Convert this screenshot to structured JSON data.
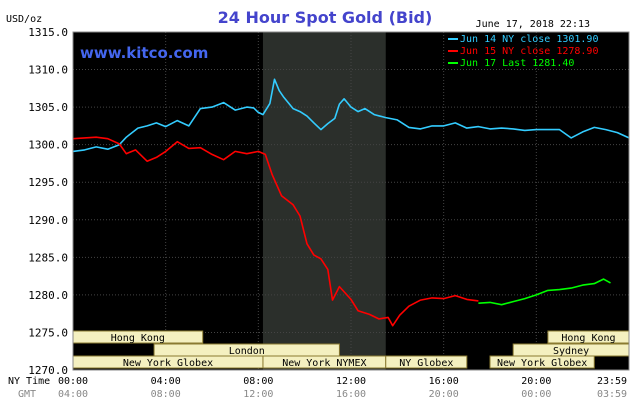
{
  "chart_data": {
    "type": "line",
    "title": "24 Hour Spot Gold (Bid)",
    "watermark": "www.kitco.com",
    "ylabel": "USD/oz",
    "timestamp": "June 17, 2018 22:13",
    "ylim": [
      1270.0,
      1315.0
    ],
    "y_ticks": [
      "1315.0",
      "1310.0",
      "1305.0",
      "1300.0",
      "1295.0",
      "1290.0",
      "1285.0",
      "1280.0",
      "1275.0",
      "1270.0"
    ],
    "x_range_hours": [
      0,
      24
    ],
    "ny_time_label": "NY Time",
    "gmt_label": "GMT",
    "ny_time_ticks": [
      "00:00",
      "04:00",
      "08:00",
      "12:00",
      "16:00",
      "20:00",
      "23:59"
    ],
    "gmt_ticks": [
      "04:00",
      "08:00",
      "12:00",
      "16:00",
      "20:00",
      "00:00",
      "03:59"
    ],
    "shaded_hours": [
      8.2,
      13.5
    ],
    "legend_placement": "top-right",
    "series": [
      {
        "name": "Jun 14 NY close 1301.90",
        "color": "#33ccff",
        "points": [
          [
            0,
            1299.1
          ],
          [
            0.5,
            1299.3
          ],
          [
            1,
            1299.7
          ],
          [
            1.5,
            1299.4
          ],
          [
            2,
            1300.0
          ],
          [
            2.3,
            1301.0
          ],
          [
            2.8,
            1302.2
          ],
          [
            3.2,
            1302.5
          ],
          [
            3.6,
            1302.9
          ],
          [
            4,
            1302.4
          ],
          [
            4.5,
            1303.2
          ],
          [
            5,
            1302.5
          ],
          [
            5.5,
            1304.8
          ],
          [
            6,
            1305.0
          ],
          [
            6.5,
            1305.6
          ],
          [
            7,
            1304.6
          ],
          [
            7.5,
            1305.0
          ],
          [
            7.8,
            1304.9
          ],
          [
            8.0,
            1304.3
          ],
          [
            8.2,
            1304.0
          ],
          [
            8.5,
            1305.5
          ],
          [
            8.7,
            1308.7
          ],
          [
            8.9,
            1307.2
          ],
          [
            9.1,
            1306.3
          ],
          [
            9.5,
            1304.8
          ],
          [
            9.8,
            1304.4
          ],
          [
            10.1,
            1303.8
          ],
          [
            10.4,
            1302.9
          ],
          [
            10.7,
            1302.0
          ],
          [
            11.0,
            1302.8
          ],
          [
            11.3,
            1303.5
          ],
          [
            11.5,
            1305.4
          ],
          [
            11.7,
            1306.1
          ],
          [
            12.0,
            1305.0
          ],
          [
            12.3,
            1304.4
          ],
          [
            12.6,
            1304.8
          ],
          [
            13.0,
            1304.0
          ],
          [
            13.5,
            1303.6
          ],
          [
            14,
            1303.3
          ],
          [
            14.5,
            1302.3
          ],
          [
            15,
            1302.1
          ],
          [
            15.5,
            1302.5
          ],
          [
            16,
            1302.5
          ],
          [
            16.5,
            1302.9
          ],
          [
            17,
            1302.2
          ],
          [
            17.5,
            1302.4
          ],
          [
            18,
            1302.1
          ],
          [
            18.5,
            1302.2
          ],
          [
            19,
            1302.1
          ],
          [
            19.5,
            1301.9
          ],
          [
            20,
            1302.0
          ],
          [
            20.5,
            1302.0
          ],
          [
            21,
            1302.0
          ],
          [
            21.5,
            1300.9
          ],
          [
            22,
            1301.7
          ],
          [
            22.5,
            1302.3
          ],
          [
            23,
            1302.0
          ],
          [
            23.5,
            1301.6
          ],
          [
            24,
            1300.9
          ]
        ]
      },
      {
        "name": "Jun 15 NY close 1278.90",
        "color": "#ff0000",
        "points": [
          [
            0,
            1300.8
          ],
          [
            0.5,
            1300.9
          ],
          [
            1,
            1301.0
          ],
          [
            1.5,
            1300.8
          ],
          [
            2,
            1300.1
          ],
          [
            2.3,
            1298.8
          ],
          [
            2.7,
            1299.3
          ],
          [
            3.2,
            1297.8
          ],
          [
            3.6,
            1298.3
          ],
          [
            4,
            1299.1
          ],
          [
            4.5,
            1300.4
          ],
          [
            5,
            1299.5
          ],
          [
            5.5,
            1299.6
          ],
          [
            6,
            1298.7
          ],
          [
            6.5,
            1298.0
          ],
          [
            7,
            1299.1
          ],
          [
            7.5,
            1298.8
          ],
          [
            8.0,
            1299.1
          ],
          [
            8.3,
            1298.7
          ],
          [
            8.6,
            1296.0
          ],
          [
            9.0,
            1293.2
          ],
          [
            9.5,
            1292.0
          ],
          [
            9.8,
            1290.5
          ],
          [
            10.1,
            1286.8
          ],
          [
            10.4,
            1285.3
          ],
          [
            10.7,
            1284.8
          ],
          [
            11.0,
            1283.4
          ],
          [
            11.2,
            1279.3
          ],
          [
            11.5,
            1281.1
          ],
          [
            12.0,
            1279.4
          ],
          [
            12.3,
            1277.9
          ],
          [
            12.8,
            1277.4
          ],
          [
            13.2,
            1276.8
          ],
          [
            13.6,
            1277.0
          ],
          [
            13.8,
            1275.9
          ],
          [
            14.1,
            1277.3
          ],
          [
            14.5,
            1278.5
          ],
          [
            15,
            1279.3
          ],
          [
            15.5,
            1279.6
          ],
          [
            16,
            1279.5
          ],
          [
            16.5,
            1279.9
          ],
          [
            17,
            1279.4
          ],
          [
            17.5,
            1279.2
          ]
        ]
      },
      {
        "name": "Jun 17 Last 1281.40",
        "color": "#00ff00",
        "points": [
          [
            17.5,
            1278.9
          ],
          [
            18,
            1279.0
          ],
          [
            18.5,
            1278.7
          ],
          [
            19,
            1279.1
          ],
          [
            19.5,
            1279.5
          ],
          [
            20,
            1280.0
          ],
          [
            20.5,
            1280.6
          ],
          [
            21,
            1280.7
          ],
          [
            21.5,
            1280.9
          ],
          [
            22,
            1281.3
          ],
          [
            22.5,
            1281.5
          ],
          [
            22.9,
            1282.1
          ],
          [
            23.2,
            1281.6
          ]
        ]
      }
    ],
    "sessions": [
      {
        "label": "Hong Kong",
        "row": 1,
        "start": 0,
        "end": 5.6
      },
      {
        "label": "Hong Kong",
        "row": 1,
        "start": 20.5,
        "end": 24
      },
      {
        "label": "London",
        "row": 2,
        "start": 3.5,
        "end": 11.5
      },
      {
        "label": "Sydney",
        "row": 2,
        "start": 19.0,
        "end": 24
      },
      {
        "label": "New York Globex",
        "row": 3,
        "start": 0,
        "end": 8.2
      },
      {
        "label": "New York NYMEX",
        "row": 3,
        "start": 8.2,
        "end": 13.5
      },
      {
        "label": "NY Globex",
        "row": 3,
        "start": 13.5,
        "end": 17.0
      },
      {
        "label": "New York Globex",
        "row": 3,
        "start": 18.0,
        "end": 22.5
      }
    ]
  }
}
